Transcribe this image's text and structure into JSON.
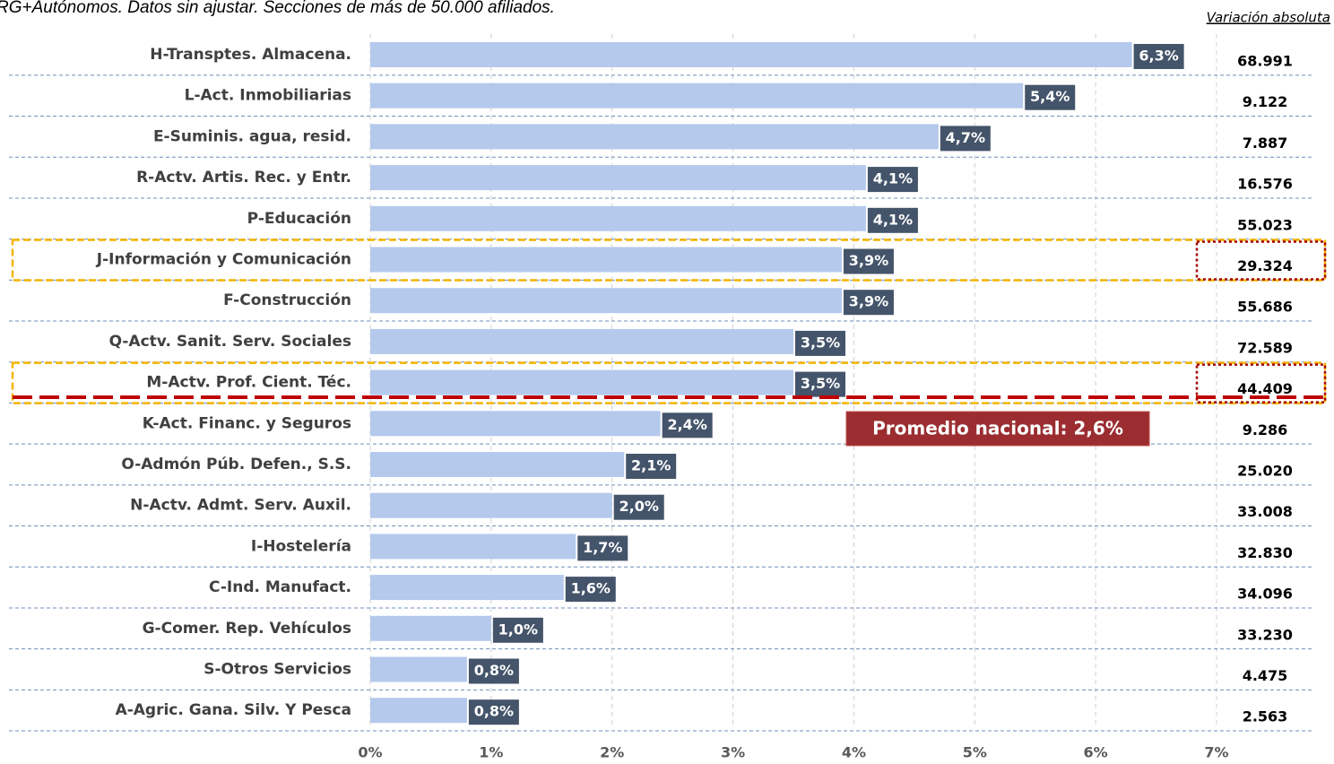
{
  "chart_data": {
    "type": "bar",
    "orientation": "horizontal",
    "subtitle": "RG+Autónomos. Datos sin ajustar. Secciones de más de 50.000 afiliados.",
    "categories": [
      "H-Transptes. Almacena.",
      "L-Act. Inmobiliarias",
      "E-Suminis. agua, resid.",
      "R-Actv. Artis. Rec. y Entr.",
      "P-Educación",
      "J-Información y Comunicación",
      "F-Construcción",
      "Q-Actv. Sanit. Serv. Sociales",
      "M-Actv. Prof. Cient. Téc.",
      "K-Act. Financ. y Seguros",
      "O-Admón Púb. Defen., S.S.",
      "N-Actv. Admt. Serv. Auxil.",
      "I-Hostelería",
      "C-Ind. Manufact.",
      "G-Comer. Rep. Vehículos",
      "S-Otros Servicios",
      "A-Agric. Gana. Silv. Y Pesca"
    ],
    "values": [
      6.3,
      5.4,
      4.7,
      4.1,
      4.1,
      3.9,
      3.9,
      3.5,
      3.5,
      2.4,
      2.1,
      2.0,
      1.7,
      1.6,
      1.0,
      0.8,
      0.8
    ],
    "value_labels": [
      "6,3%",
      "5,4%",
      "4,7%",
      "4,1%",
      "4,1%",
      "3,9%",
      "3,9%",
      "3,5%",
      "3,5%",
      "2,4%",
      "2,1%",
      "2,0%",
      "1,7%",
      "1,6%",
      "1,0%",
      "0,8%",
      "0,8%"
    ],
    "color": "#b4c9ec",
    "label_color": "#44546a",
    "xlim": [
      0,
      7
    ],
    "xticks": [
      {
        "value": 0,
        "label": "0%"
      },
      {
        "value": 1,
        "label": "1%"
      },
      {
        "value": 2,
        "label": "2%"
      },
      {
        "value": 3,
        "label": "3%"
      },
      {
        "value": 4,
        "label": "4%"
      },
      {
        "value": 5,
        "label": "5%"
      },
      {
        "value": 6,
        "label": "6%"
      },
      {
        "value": 7,
        "label": "7%"
      }
    ],
    "grid": true,
    "absolute": {
      "title": "Variación absoluta",
      "values": [
        68991,
        9122,
        7887,
        16576,
        55023,
        29324,
        55686,
        72589,
        44409,
        9286,
        25020,
        33008,
        32830,
        34096,
        33230,
        4475,
        2563
      ],
      "value_labels": [
        "68.991",
        "9.122",
        "7.887",
        "16.576",
        "55.023",
        "29.324",
        "55.686",
        "72.589",
        "44.409",
        "9.286",
        "25.020",
        "33.008",
        "32.830",
        "34.096",
        "33.230",
        "4.475",
        "2.563"
      ]
    },
    "annotation": "Promedio nacional: 2,6%"
  }
}
